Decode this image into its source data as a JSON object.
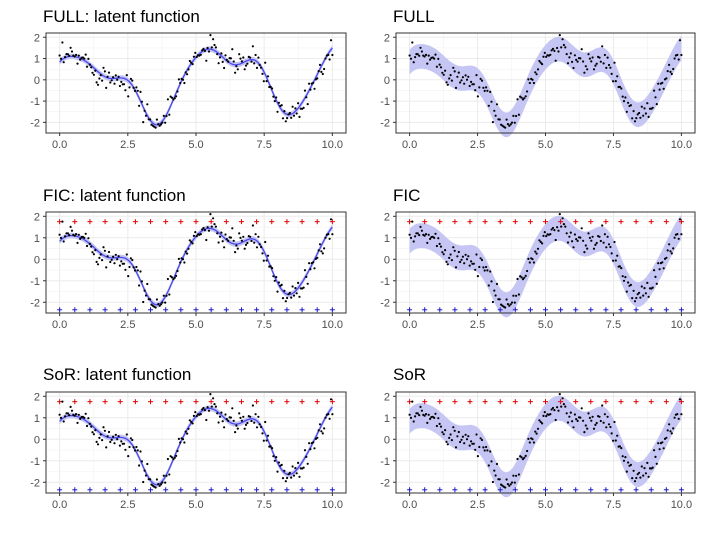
{
  "chart_data": [
    {
      "type": "line",
      "title": "FULL: latent function",
      "xlim": [
        -0.5,
        10.5
      ],
      "ylim": [
        -2.5,
        2.2
      ],
      "x_ticks": [
        "0.0",
        "2.5",
        "5.0",
        "7.5",
        "10.0"
      ],
      "y_ticks": [
        "-2",
        "-1",
        "0",
        "1",
        "2"
      ],
      "band": "narrow",
      "inducing": false,
      "grid": true,
      "colors": {
        "points": "#000000",
        "line": "#4a4af0",
        "band": "#c6c6f5"
      }
    },
    {
      "type": "line",
      "title": "FULL",
      "xlim": [
        -0.5,
        10.5
      ],
      "ylim": [
        -2.5,
        2.2
      ],
      "x_ticks": [
        "0.0",
        "2.5",
        "5.0",
        "7.5",
        "10.0"
      ],
      "y_ticks": [
        "-2",
        "-1",
        "0",
        "1",
        "2"
      ],
      "band": "wide",
      "inducing": false,
      "grid": true,
      "colors": {
        "points": "#000000",
        "line": "#4a4af0",
        "band": "#c6c6f5"
      }
    },
    {
      "type": "line",
      "title": "FIC: latent function",
      "xlim": [
        -0.5,
        10.5
      ],
      "ylim": [
        -2.5,
        2.2
      ],
      "x_ticks": [
        "0.0",
        "2.5",
        "5.0",
        "7.5",
        "10.0"
      ],
      "y_ticks": [
        "-2",
        "-1",
        "0",
        "1",
        "2"
      ],
      "band": "narrow",
      "inducing": true,
      "grid": true,
      "colors": {
        "points": "#000000",
        "line": "#4a4af0",
        "band": "#c6c6f5",
        "inducing_top": "#e00000",
        "inducing_bottom": "#1a1acc"
      }
    },
    {
      "type": "line",
      "title": "FIC",
      "xlim": [
        -0.5,
        10.5
      ],
      "ylim": [
        -2.5,
        2.2
      ],
      "x_ticks": [
        "0.0",
        "2.5",
        "5.0",
        "7.5",
        "10.0"
      ],
      "y_ticks": [
        "-2",
        "-1",
        "0",
        "1",
        "2"
      ],
      "band": "wide",
      "inducing": true,
      "grid": true,
      "colors": {
        "points": "#000000",
        "line": "#4a4af0",
        "band": "#c6c6f5",
        "inducing_top": "#e00000",
        "inducing_bottom": "#1a1acc"
      }
    },
    {
      "type": "line",
      "title": "SoR: latent function",
      "xlim": [
        -0.5,
        10.5
      ],
      "ylim": [
        -2.5,
        2.2
      ],
      "x_ticks": [
        "0.0",
        "2.5",
        "5.0",
        "7.5",
        "10.0"
      ],
      "y_ticks": [
        "-2",
        "-1",
        "0",
        "1",
        "2"
      ],
      "band": "narrow",
      "inducing": true,
      "grid": true,
      "colors": {
        "points": "#000000",
        "line": "#4a4af0",
        "band": "#c6c6f5",
        "inducing_top": "#e00000",
        "inducing_bottom": "#1a1acc"
      }
    },
    {
      "type": "line",
      "title": "SoR",
      "xlim": [
        -0.5,
        10.5
      ],
      "ylim": [
        -2.5,
        2.2
      ],
      "x_ticks": [
        "0.0",
        "2.5",
        "5.0",
        "7.5",
        "10.0"
      ],
      "y_ticks": [
        "-2",
        "-1",
        "0",
        "1",
        "2"
      ],
      "band": "wide",
      "inducing": true,
      "grid": true,
      "colors": {
        "points": "#000000",
        "line": "#4a4af0",
        "band": "#c6c6f5",
        "inducing_top": "#e00000",
        "inducing_bottom": "#1a1acc"
      }
    }
  ]
}
